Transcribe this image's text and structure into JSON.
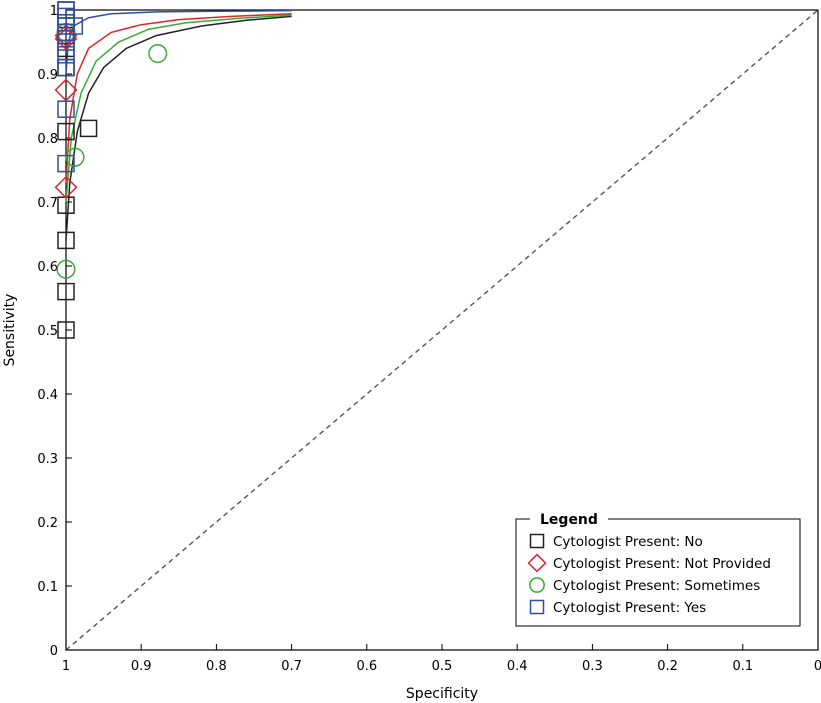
{
  "chart_data": {
    "type": "scatter",
    "xlabel": "Specificity",
    "ylabel": "Sensitivity",
    "x_reversed": true,
    "xlim": [
      1,
      0
    ],
    "ylim": [
      0,
      1
    ],
    "x_ticks": [
      "1",
      "0.9",
      "0.8",
      "0.7",
      "0.6",
      "0.5",
      "0.4",
      "0.3",
      "0.2",
      "0.1",
      "0"
    ],
    "y_ticks": [
      "0",
      "0.1",
      "0.2",
      "0.3",
      "0.4",
      "0.5",
      "0.6",
      "0.7",
      "0.8",
      "0.9",
      "1"
    ],
    "grid": false,
    "reference_line": "dashed diagonal (chance)",
    "legend": {
      "title": "Legend",
      "placement": "bottom-right",
      "entries": [
        {
          "label": "Cytologist Present: No",
          "marker": "square",
          "color": "#222222"
        },
        {
          "label": "Cytologist Present: Not Provided",
          "marker": "diamond",
          "color": "#d9262c"
        },
        {
          "label": "Cytologist Present: Sometimes",
          "marker": "circle",
          "color": "#3aaa35"
        },
        {
          "label": "Cytologist Present: Yes",
          "marker": "square",
          "color": "#2e4fa3"
        }
      ]
    },
    "series": [
      {
        "marker": "square",
        "color": "#222222",
        "points": [
          [
            1,
            0.5
          ],
          [
            1,
            0.56
          ],
          [
            1,
            0.64
          ],
          [
            1,
            0.695
          ],
          [
            1,
            0.81
          ],
          [
            0.97,
            0.815
          ],
          [
            1,
            0.91
          ],
          [
            1,
            0.94
          ],
          [
            1,
            0.96
          ],
          [
            1,
            0.98
          ],
          [
            1,
            1
          ]
        ],
        "sroc_curve": [
          [
            1,
            0.64
          ],
          [
            0.995,
            0.73
          ],
          [
            0.985,
            0.81
          ],
          [
            0.97,
            0.87
          ],
          [
            0.95,
            0.91
          ],
          [
            0.92,
            0.94
          ],
          [
            0.88,
            0.96
          ],
          [
            0.82,
            0.975
          ],
          [
            0.76,
            0.984
          ],
          [
            0.7,
            0.99
          ]
        ]
      },
      {
        "marker": "diamond",
        "color": "#d9262c",
        "points": [
          [
            1,
            0.723
          ],
          [
            1,
            0.875
          ],
          [
            1,
            0.955
          ],
          [
            1,
            0.96
          ]
        ],
        "sroc_curve": [
          [
            1,
            0.73
          ],
          [
            0.995,
            0.83
          ],
          [
            0.985,
            0.9
          ],
          [
            0.97,
            0.94
          ],
          [
            0.94,
            0.965
          ],
          [
            0.9,
            0.977
          ],
          [
            0.85,
            0.985
          ],
          [
            0.78,
            0.99
          ],
          [
            0.7,
            0.994
          ]
        ]
      },
      {
        "marker": "circle",
        "color": "#3aaa35",
        "points": [
          [
            1,
            0.595
          ],
          [
            0.988,
            0.77
          ],
          [
            0.878,
            0.932
          ],
          [
            1,
            0.965
          ]
        ],
        "sroc_curve": [
          [
            1,
            0.7
          ],
          [
            0.993,
            0.8
          ],
          [
            0.98,
            0.87
          ],
          [
            0.96,
            0.92
          ],
          [
            0.93,
            0.95
          ],
          [
            0.89,
            0.97
          ],
          [
            0.84,
            0.98
          ],
          [
            0.77,
            0.987
          ],
          [
            0.7,
            0.992
          ]
        ]
      },
      {
        "marker": "square",
        "color": "#2e4fa3",
        "points": [
          [
            1,
            0.76
          ],
          [
            1,
            0.845
          ],
          [
            1,
            0.91
          ],
          [
            1,
            0.93
          ],
          [
            1,
            0.95
          ],
          [
            1,
            0.965
          ],
          [
            1,
            0.98
          ],
          [
            1,
            0.99
          ],
          [
            1,
            1
          ],
          [
            0.989,
            0.975
          ]
        ],
        "sroc_curve": [
          [
            1,
            0.9
          ],
          [
            0.997,
            0.95
          ],
          [
            0.99,
            0.975
          ],
          [
            0.97,
            0.988
          ],
          [
            0.94,
            0.994
          ],
          [
            0.88,
            0.997
          ],
          [
            0.8,
            0.998
          ],
          [
            0.7,
            0.999
          ]
        ]
      }
    ]
  }
}
